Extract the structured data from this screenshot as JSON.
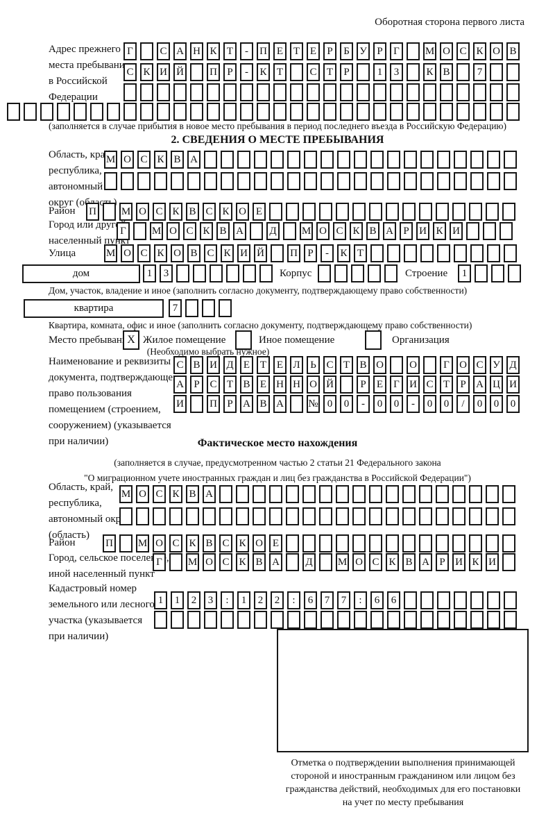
{
  "page": {
    "side_note": "Оборотная сторона первого листа"
  },
  "prev_address": {
    "label_lines": [
      "Адрес прежнего",
      "места пребывания",
      "в Российской",
      "Федерации"
    ],
    "rows": {
      "r1": "Г САНКТ-ПЕТЕРБУРГ МОСКОВ",
      "r2": "СКИЙ ПР-КТ СТР 13 КВ 7",
      "r3": "",
      "r4": ""
    },
    "caption": "(заполняется в случае прибытия в новое место пребывания в период последнего въезда в Российскую Федерацию)"
  },
  "section_stay": {
    "title": "2. СВЕДЕНИЯ О МЕСТЕ ПРЕБЫВАНИЯ",
    "region_label_lines": [
      "Область, край,",
      "республика,",
      "автономный",
      "округ (область)"
    ],
    "region_rows": {
      "r1": "МОСКВА",
      "r2": ""
    },
    "district_label": "Район",
    "district_row": "П МОСКВСКОЕ",
    "city_label_lines": [
      "Город или другой",
      "населенный пункт"
    ],
    "city_row": "Г МОСКВА Д МОСКВАРИКИ",
    "street_label": "Улица",
    "street_row": "МОСКОВСКИЙ ПР-КТ",
    "house_box_label": "дом",
    "house_row": "13",
    "korpus_label": "Корпус",
    "korpus_row": "",
    "stroenie_label": "Строение",
    "stroenie_row": "1",
    "house_caption": "Дом, участок, владение и иное (заполнить согласно документу, подтверждающему право собственности)",
    "apartment_box_label": "квартира",
    "apartment_row": "7",
    "apartment_caption": "Квартира, комната, офис и иное (заполнить согласно документу, подтверждающему право собственности)"
  },
  "residence_type": {
    "label": "Место пребывания:",
    "options": [
      {
        "mark": "X",
        "label": "Жилое помещение"
      },
      {
        "mark": "",
        "label": "Иное помещение"
      },
      {
        "mark": "",
        "label": "Организация"
      }
    ],
    "note": "(Необходимо выбрать нужное)"
  },
  "usage_document": {
    "label_lines": [
      "Наименование и реквизиты",
      "документа, подтверждающего",
      "право пользования",
      "помещением (строением,",
      "сооружением) (указывается",
      "при наличии)"
    ],
    "rows": {
      "r1": "СВИДЕТЕЛЬСТВО О ГОСУД",
      "r2": "АРСТВЕННОЙ РЕГИСТРАЦИ",
      "r3": "И ПРАВА №00-00-00/000"
    }
  },
  "actual_location": {
    "title": "Фактическое место нахождения",
    "caption_lines": [
      "(заполняется в случае, предусмотренном частью 2 статьи 21 Федерального закона",
      "\"О миграционном учете иностранных граждан и лиц без гражданства в Российской Федерации\")"
    ],
    "region_label_lines": [
      "Область, край,",
      "республика,",
      "автономный округ",
      "(область)"
    ],
    "region_rows": {
      "r1": "МОСКВА",
      "r2": ""
    },
    "district_label": "Район",
    "district_row": "П МОСКВСКОЕ",
    "city_label_lines": [
      "Город, сельское поселение,",
      "иной населенный пункт"
    ],
    "city_row": "Г МОСКВА Д МОСКВАРИКИ",
    "cadastre_label_lines": [
      "Кадастровый номер",
      "земельного или лесного",
      "участка (указывается",
      "при наличии)"
    ],
    "cadastre_rows": {
      "r1": "1123:122:677:66",
      "r2": ""
    }
  },
  "stamp_area": {
    "caption_lines": [
      "Отметка о подтверждении выполнения принимающей",
      "стороной и иностранным гражданином или лицом без",
      "гражданства действий, необходимых для его постановки",
      "на учет по месту пребывания"
    ]
  }
}
